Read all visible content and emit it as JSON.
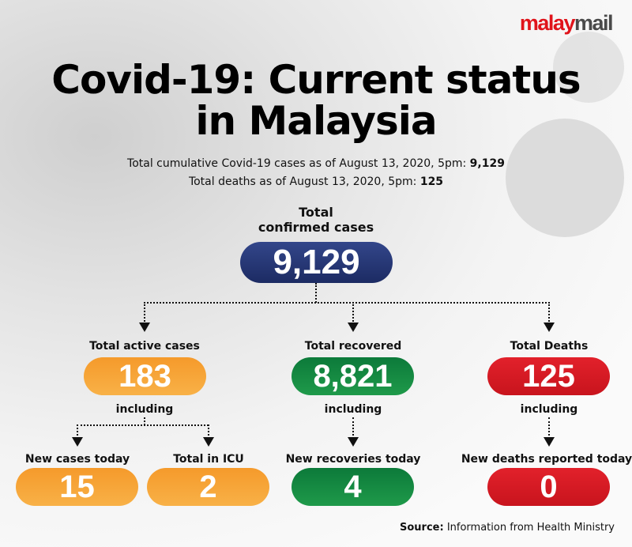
{
  "logo": {
    "part1": "malay",
    "part2": "mail"
  },
  "title": {
    "line1": "Covid-19: Current status",
    "line2": "in Malaysia"
  },
  "summary": {
    "cumulative_label": "Total cumulative Covid-19 cases as of August 13, 2020, 5pm: ",
    "cumulative_value": "9,129",
    "deaths_label": "Total deaths as of August 13, 2020, 5pm: ",
    "deaths_value": "125"
  },
  "total": {
    "label1": "Total",
    "label2": "confirmed cases",
    "value": "9,129"
  },
  "including": "including",
  "active": {
    "label": "Total active cases",
    "value": "183"
  },
  "recovered": {
    "label": "Total recovered",
    "value": "8,821"
  },
  "deaths": {
    "label": "Total Deaths",
    "value": "125"
  },
  "new_cases": {
    "label": "New cases today",
    "value": "15"
  },
  "icu": {
    "label": "Total in ICU",
    "value": "2"
  },
  "new_recoveries": {
    "label": "New recoveries today",
    "value": "4"
  },
  "new_deaths": {
    "label": "New deaths reported today",
    "value": "0"
  },
  "source": {
    "label": "Source:",
    "text": " Information from Health Ministry"
  },
  "colors": {
    "navy": "#1c2b63",
    "orange": "#f59a2b",
    "green": "#0c7a3a",
    "red": "#e2212b",
    "logo_red": "#e0141b"
  }
}
